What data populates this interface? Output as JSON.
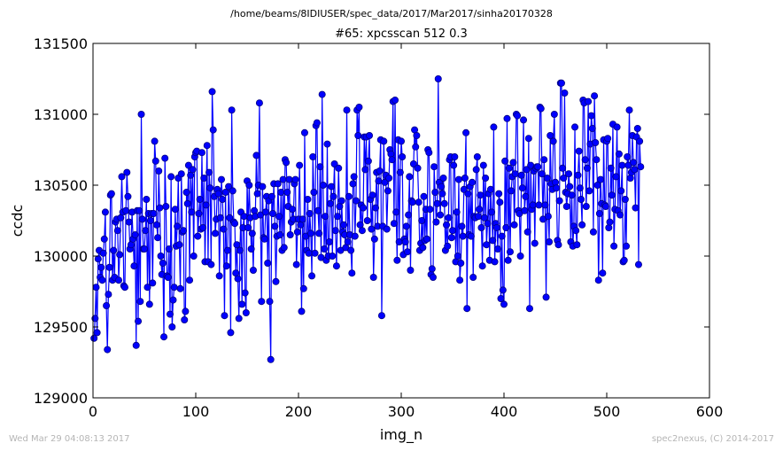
{
  "suptitle": "/home/beams/8IDIUSER/spec_data/2017/Mar2017/sinha20170328",
  "footer_left": "Wed Mar 29 04:08:13 2017",
  "footer_right": "spec2nexus, (C) 2014-2017",
  "colors": {
    "series": "#0000ff",
    "marker_fill": "#0000ff",
    "marker_edge": "#000080",
    "frame": "#000000"
  },
  "chart_data": {
    "type": "line",
    "title": "#65: xpcsscan 512 0.3",
    "xlabel": "img_n",
    "ylabel": "ccdc",
    "xlim": [
      0,
      600
    ],
    "ylim": [
      129000,
      131500
    ],
    "xticks": [
      0,
      100,
      200,
      300,
      400,
      500,
      600
    ],
    "yticks": [
      129000,
      129500,
      130000,
      130500,
      131000,
      131500
    ],
    "grid": false,
    "markers": true,
    "x_start": 1,
    "x_step": 1,
    "y": [
      129420,
      129560,
      129780,
      129460,
      129980,
      130040,
      129850,
      129920,
      129830,
      130020,
      130120,
      130310,
      129650,
      129340,
      129730,
      129920,
      130430,
      130440,
      129830,
      130040,
      129850,
      130240,
      130260,
      130180,
      129830,
      130010,
      130270,
      130560,
      130310,
      129790,
      129780,
      130320,
      130590,
      130420,
      130240,
      130050,
      130080,
      130310,
      130120,
      129930,
      130150,
      129370,
      130320,
      129540,
      130320,
      129680,
      131000,
      130260,
      130050,
      130050,
      130180,
      130400,
      129780,
      130300,
      129660,
      130250,
      130300,
      129810,
      130300,
      130810,
      130670,
      130220,
      130130,
      130600,
      130340,
      130000,
      129870,
      129950,
      129430,
      130690,
      130350,
      129860,
      129850,
      130050,
      129590,
      130560,
      129500,
      129690,
      129780,
      130330,
      130070,
      130210,
      130550,
      130080,
      129770,
      130580,
      130170,
      130180,
      129550,
      129610,
      130450,
      130370,
      130640,
      129830,
      130570,
      130310,
      130610,
      130000,
      130700,
      130730,
      130740,
      130140,
      130300,
      130400,
      130190,
      130730,
      130200,
      130550,
      129960,
      130360,
      130780,
      129960,
      130590,
      130480,
      129940,
      131160,
      130890,
      130420,
      130160,
      130260,
      130470,
      130440,
      129860,
      130270,
      130540,
      130400,
      130190,
      129580,
      130450,
      129930,
      130040,
      130490,
      130270,
      129460,
      131030,
      130460,
      130240,
      130230,
      129880,
      130080,
      129840,
      129560,
      130040,
      130310,
      129660,
      130200,
      130280,
      129740,
      129600,
      130530,
      130200,
      130500,
      130270,
      130050,
      130160,
      129900,
      130320,
      130280,
      130710,
      130440,
      130500,
      131080,
      130290,
      129680,
      130490,
      130130,
      130120,
      130310,
      130420,
      129950,
      130390,
      129680,
      129270,
      130420,
      130300,
      130510,
      130210,
      129820,
      130140,
      130510,
      130280,
      130150,
      130450,
      130040,
      130540,
      130060,
      130680,
      130660,
      130450,
      130350,
      130540,
      130150,
      130240,
      130330,
      130260,
      130510,
      130540,
      129940,
      130170,
      130260,
      130640,
      130220,
      129610,
      130260,
      129770,
      130870,
      130140,
      130040,
      130400,
      130020,
      130300,
      130160,
      129860,
      130700,
      130450,
      130020,
      130920,
      130940,
      130320,
      130160,
      130630,
      129990,
      131140,
      130500,
      130050,
      130280,
      129970,
      130790,
      130000,
      130100,
      130370,
      130490,
      130000,
      130420,
      130650,
      130180,
      129930,
      130280,
      130620,
      130350,
      130040,
      130390,
      130170,
      130220,
      130150,
      130060,
      131030,
      130100,
      130420,
      130150,
      130040,
      129880,
      130510,
      130560,
      130140,
      130390,
      131030,
      130850,
      131050,
      130220,
      130360,
      130180,
      130340,
      130840,
      130610,
      130840,
      130250,
      130670,
      130850,
      130400,
      130190,
      130430,
      129850,
      130120,
      130340,
      130590,
      130210,
      130530,
      130600,
      130820,
      129580,
      130210,
      130810,
      130520,
      130570,
      130190,
      130460,
      130550,
      130750,
      130720,
      130680,
      131090,
      130230,
      131100,
      130310,
      129970,
      130820,
      130100,
      130590,
      130810,
      130700,
      130010,
      130120,
      130100,
      130210,
      130030,
      130290,
      130560,
      129900,
      130390,
      130380,
      130650,
      130890,
      130770,
      130850,
      130620,
      130380,
      130040,
      130090,
      130250,
      130060,
      130420,
      130110,
      130330,
      130120,
      130750,
      130730,
      130330,
      129870,
      129910,
      129850,
      130630,
      130450,
      130240,
      130370,
      131250,
      130520,
      130290,
      130490,
      130440,
      130550,
      130370,
      130040,
      130220,
      130070,
      130270,
      130680,
      130700,
      130130,
      130180,
      130640,
      130700,
      129960,
      130310,
      130000,
      130540,
      129830,
      129950,
      130210,
      130140,
      130470,
      130550,
      130870,
      129630,
      130440,
      130150,
      130490,
      130140,
      130520,
      129850,
      130280,
      130270,
      130610,
      130700,
      130280,
      130330,
      130430,
      130200,
      129930,
      130640,
      130270,
      130550,
      130080,
      130230,
      130440,
      129970,
      130470,
      130310,
      130110,
      130910,
      129960,
      130230,
      130200,
      130050,
      130440,
      130380,
      129700,
      130140,
      129760,
      129660,
      130670,
      130200,
      130970,
      129970,
      130620,
      130030,
      130460,
      130560,
      130660,
      130220,
      130580,
      131000,
      130990,
      130320,
      130300,
      130000,
      130570,
      130480,
      130960,
      130320,
      130420,
      130610,
      130170,
      130830,
      129630,
      130640,
      130330,
      130360,
      130600,
      130090,
      130620,
      130630,
      130630,
      130360,
      131050,
      131040,
      130580,
      130260,
      130680,
      130360,
      129710,
      130550,
      130280,
      130100,
      130850,
      130510,
      130470,
      130810,
      131000,
      130520,
      130480,
      130110,
      130080,
      130390,
      131220,
      131220,
      130620,
      130550,
      131150,
      130450,
      130350,
      130440,
      130580,
      130490,
      130100,
      130430,
      130070,
      130210,
      130910,
      130180,
      130080,
      130570,
      130740,
      130480,
      130400,
      130220,
      131100,
      131080,
      130680,
      130350,
      130620,
      131090,
      130460,
      130790,
      130990,
      130900,
      130170,
      131130,
      130800,
      130680,
      130500,
      129830,
      130300,
      130540,
      130370,
      129880,
      130820,
      130360,
      130350,
      130810,
      130830,
      130200,
      130240,
      130620,
      130430,
      130930,
      130070,
      130330,
      130560,
      130910,
      130320,
      130720,
      130290,
      130460,
      130640,
      129960,
      129970,
      130400,
      130070,
      130700,
      130640,
      131030,
      130550,
      130590,
      130850,
      130660,
      130610,
      130340,
      130840,
      130900,
      129940,
      130810,
      130630
    ]
  }
}
